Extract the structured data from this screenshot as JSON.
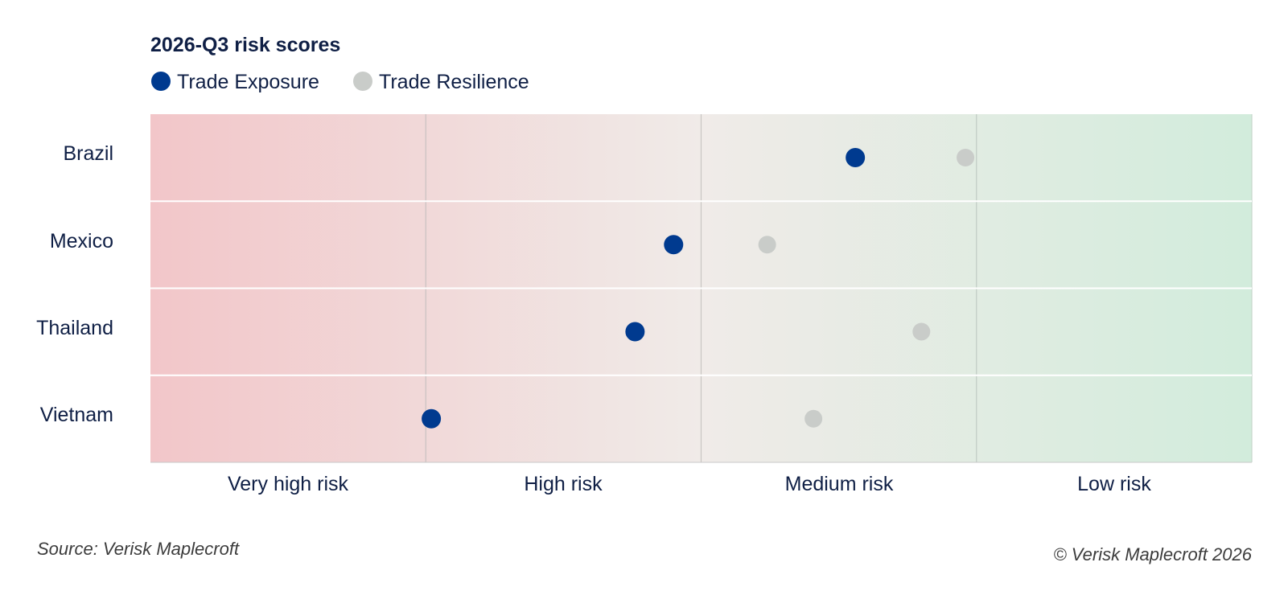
{
  "chart_data": {
    "type": "scatter",
    "title": "2026-Q3 risk scores",
    "categories": [
      "Brazil",
      "Mexico",
      "Thailand",
      "Vietnam"
    ],
    "x_range": [
      0,
      10
    ],
    "bands": [
      "Very high risk",
      "High risk",
      "Medium risk",
      "Low risk"
    ],
    "legend_position": "top-left",
    "series": [
      {
        "name": "Trade Exposure",
        "color": "#003a8f",
        "values": [
          6.4,
          4.75,
          4.4,
          2.55
        ]
      },
      {
        "name": "Trade Resilience",
        "color": "#c9ccc9",
        "values": [
          7.4,
          5.6,
          7.0,
          6.02
        ]
      }
    ]
  },
  "footer": {
    "source": "Source: Verisk Maplecroft",
    "copyright": "© Verisk Maplecroft 2026"
  }
}
